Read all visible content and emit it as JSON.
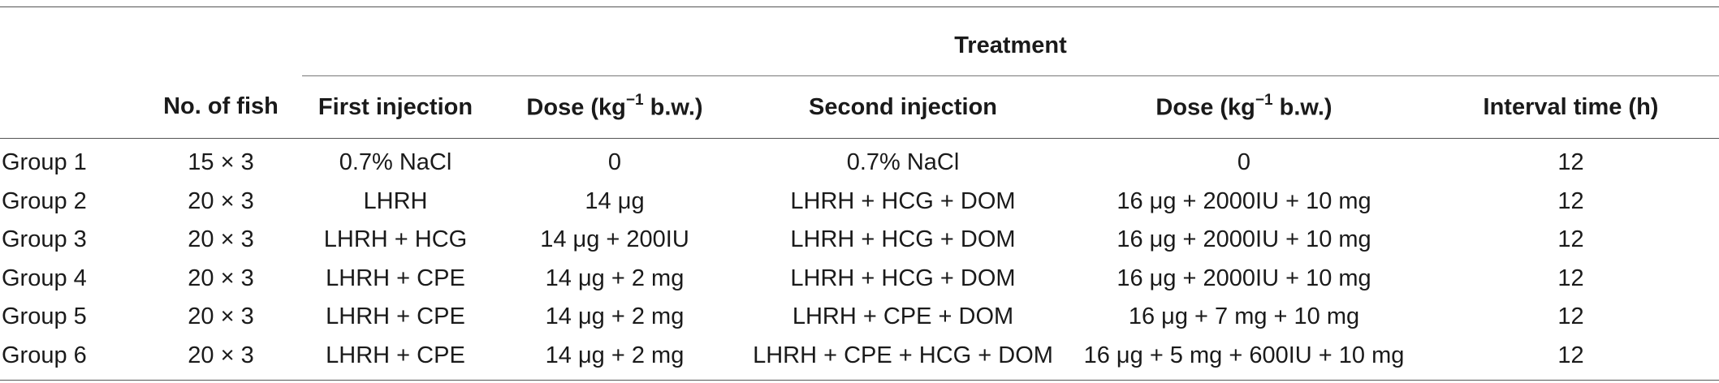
{
  "table": {
    "group_header": "Treatment",
    "columns": [
      {
        "key": "group",
        "label": ""
      },
      {
        "key": "no_fish",
        "label": "No. of fish"
      },
      {
        "key": "first_injection",
        "label": "First injection"
      },
      {
        "key": "dose1",
        "label_prefix": "Dose (kg",
        "label_sup": "−1",
        "label_suffix": " b.w.)"
      },
      {
        "key": "second_injection",
        "label": "Second injection"
      },
      {
        "key": "dose2",
        "label_prefix": "Dose (kg",
        "label_sup": "−1",
        "label_suffix": " b.w.)"
      },
      {
        "key": "interval",
        "label": "Interval time (h)"
      }
    ],
    "rows": [
      {
        "group": "Group 1",
        "no_fish": "15 × 3",
        "first_injection": "0.7% NaCl",
        "dose1": "0",
        "second_injection": "0.7% NaCl",
        "dose2": "0",
        "interval": "12"
      },
      {
        "group": "Group 2",
        "no_fish": "20 × 3",
        "first_injection": "LHRH",
        "dose1": "14 μg",
        "second_injection": "LHRH + HCG + DOM",
        "dose2": "16 μg + 2000IU + 10 mg",
        "interval": "12"
      },
      {
        "group": "Group 3",
        "no_fish": "20 × 3",
        "first_injection": "LHRH + HCG",
        "dose1": "14 μg + 200IU",
        "second_injection": "LHRH + HCG + DOM",
        "dose2": "16 μg + 2000IU + 10 mg",
        "interval": "12"
      },
      {
        "group": "Group 4",
        "no_fish": "20 × 3",
        "first_injection": "LHRH + CPE",
        "dose1": "14 μg + 2 mg",
        "second_injection": "LHRH + HCG + DOM",
        "dose2": "16 μg + 2000IU + 10 mg",
        "interval": "12"
      },
      {
        "group": "Group 5",
        "no_fish": "20 × 3",
        "first_injection": "LHRH + CPE",
        "dose1": "14 μg + 2 mg",
        "second_injection": "LHRH + CPE + DOM",
        "dose2": "16 μg + 7 mg + 10 mg",
        "interval": "12"
      },
      {
        "group": "Group 6",
        "no_fish": "20 × 3",
        "first_injection": "LHRH + CPE",
        "dose1": "14 μg + 2 mg",
        "second_injection": "LHRH + CPE + HCG + DOM",
        "dose2": "16 μg + 5 mg + 600IU + 10 mg",
        "interval": "12"
      }
    ]
  }
}
